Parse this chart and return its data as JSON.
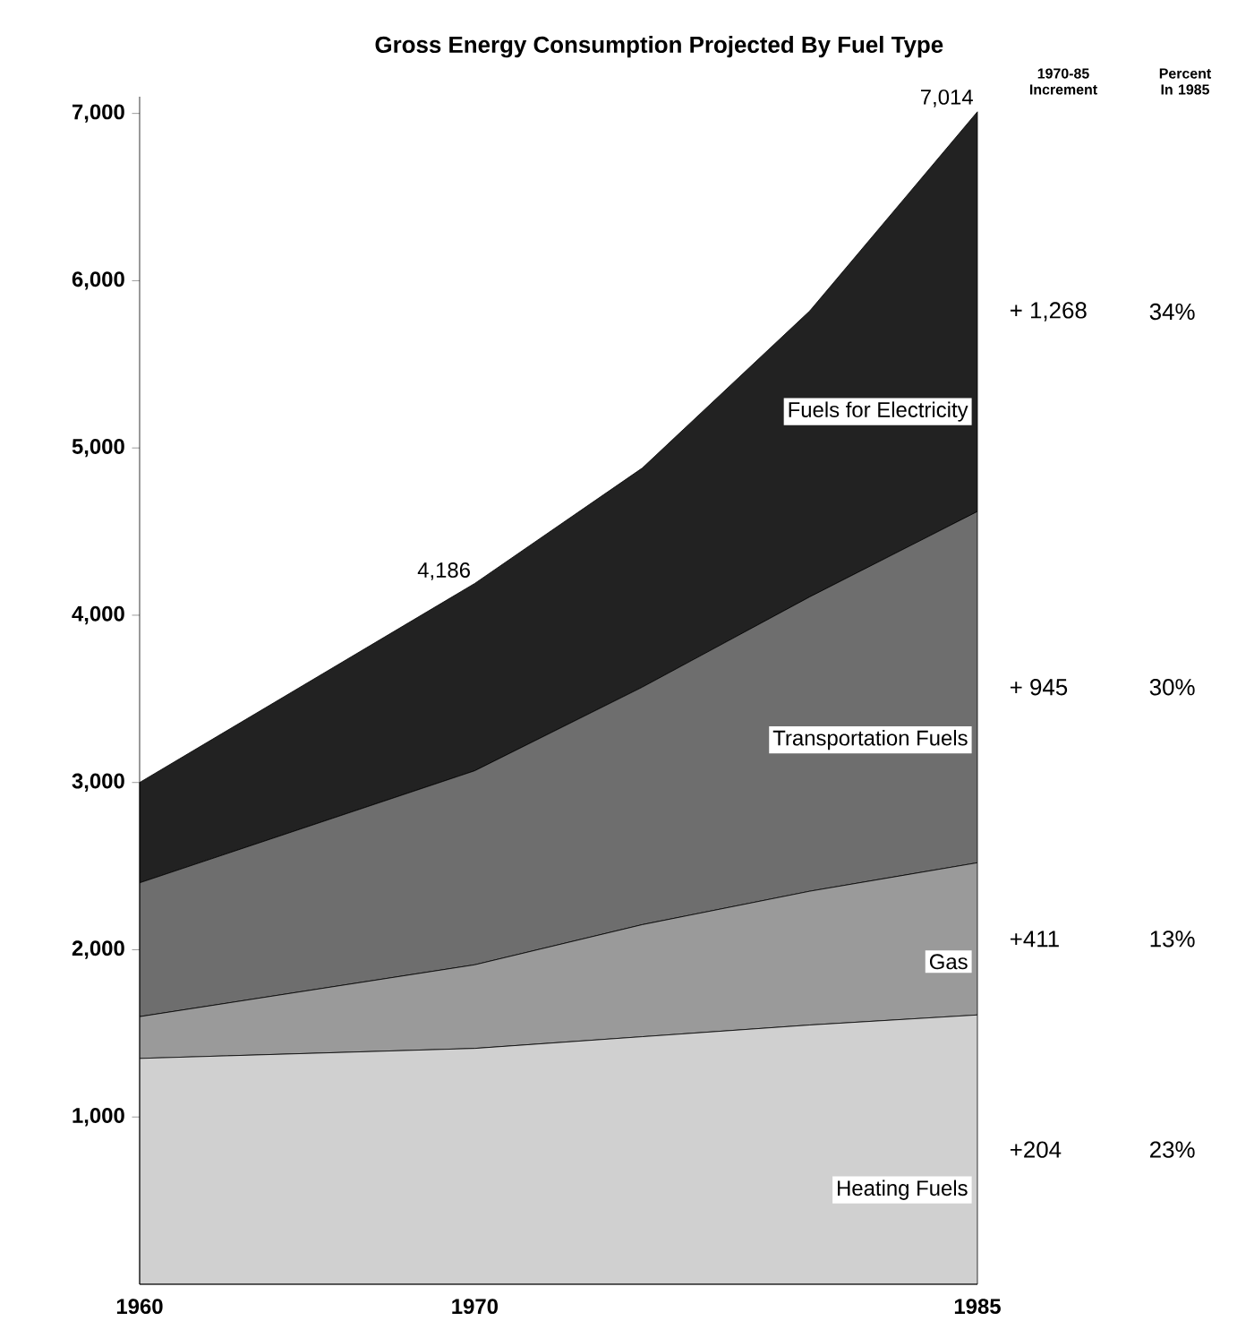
{
  "chart_data": {
    "type": "area",
    "stacked": true,
    "title": "Gross Energy Consumption Projected By Fuel Type",
    "x": [
      1960,
      1970,
      1975,
      1980,
      1985
    ],
    "series": [
      {
        "name": "Heating Fuels",
        "color": "#d0d0d0",
        "values": [
          1350,
          1410,
          1480,
          1550,
          1610
        ]
      },
      {
        "name": "Gas",
        "color": "#9a9a9a",
        "values": [
          250,
          500,
          670,
          800,
          910
        ]
      },
      {
        "name": "Transportation Fuels",
        "color": "#6e6e6e",
        "values": [
          800,
          1160,
          1420,
          1760,
          2100
        ]
      },
      {
        "name": "Fuels for Electricity",
        "color": "#222222",
        "values": [
          600,
          1120,
          1310,
          1710,
          2390
        ]
      }
    ],
    "xlim": [
      1960,
      1985
    ],
    "xticks": [
      1960,
      1970,
      1985
    ],
    "ylim": [
      0,
      7100
    ],
    "yticks": [
      {
        "value": 1000,
        "label": "1,000"
      },
      {
        "value": 2000,
        "label": "2,000"
      },
      {
        "value": 3000,
        "label": "3,000"
      },
      {
        "value": 4000,
        "label": "4,000"
      },
      {
        "value": 5000,
        "label": "5,000"
      },
      {
        "value": 6000,
        "label": "6,000"
      },
      {
        "value": 7000,
        "label": "7,000"
      }
    ],
    "legend": false,
    "grid": false,
    "annotations": [
      {
        "text": "7,014",
        "x": 1985,
        "y": 7014
      },
      {
        "text": "4,186",
        "x": 1970,
        "y": 4186
      },
      "1970-85 Increment",
      "Percent In 1985",
      "+204",
      "23%",
      "+411",
      "13%",
      "+ 945",
      "30%",
      "+ 1,268",
      "34%"
    ]
  }
}
